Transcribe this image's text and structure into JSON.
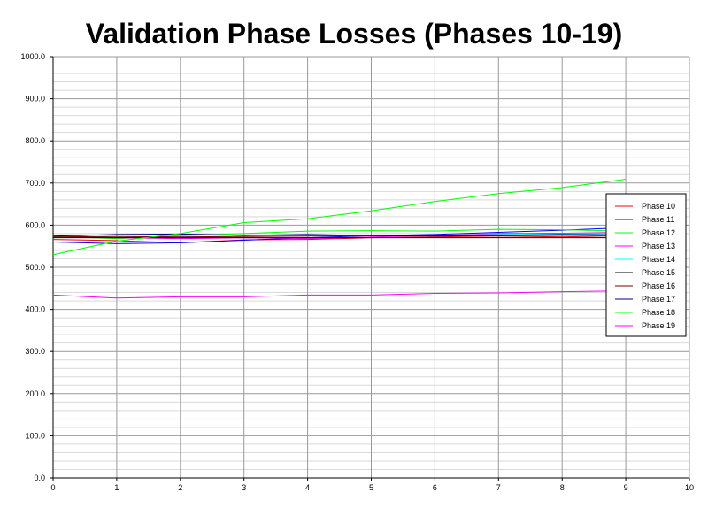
{
  "chart_data": {
    "type": "line",
    "title": "Validation Phase Losses (Phases 10-19)",
    "xlabel": "",
    "ylabel": "",
    "xlim": [
      0,
      10
    ],
    "ylim": [
      0,
      1000
    ],
    "x_ticks": [
      "0",
      "1",
      "2",
      "3",
      "4",
      "5",
      "6",
      "7",
      "8",
      "9",
      "10"
    ],
    "y_ticks": [
      "0.0",
      "100.0",
      "200.0",
      "300.0",
      "400.0",
      "500.0",
      "600.0",
      "700.0",
      "800.0",
      "900.0",
      "1000.0"
    ],
    "grid": true,
    "legend_position": "right",
    "x": [
      0,
      1,
      2,
      3,
      4,
      5,
      6,
      7,
      8,
      9
    ],
    "series": [
      {
        "name": "Phase 10",
        "color": "#ff0000",
        "values": [
          566,
          563,
          558,
          565,
          566,
          570,
          572,
          574,
          572,
          575
        ]
      },
      {
        "name": "Phase 11",
        "color": "#0000ff",
        "values": [
          560,
          556,
          558,
          564,
          570,
          575,
          578,
          583,
          588,
          594
        ]
      },
      {
        "name": "Phase 12",
        "color": "#00ff00",
        "values": [
          573,
          568,
          575,
          580,
          586,
          587,
          586,
          590,
          589,
          586
        ]
      },
      {
        "name": "Phase 13",
        "color": "#ff00ff",
        "values": [
          576,
          570,
          568,
          570,
          568,
          572,
          575,
          580,
          581,
          583
        ]
      },
      {
        "name": "Phase 14",
        "color": "#00ffff",
        "values": [
          575,
          570,
          572,
          574,
          575,
          575,
          576,
          578,
          579,
          580
        ]
      },
      {
        "name": "Phase 15",
        "color": "#000000",
        "values": [
          570,
          570,
          570,
          570,
          570,
          570,
          570,
          570,
          570,
          570
        ]
      },
      {
        "name": "Phase 16",
        "color": "#800000",
        "values": [
          572,
          573,
          572,
          573,
          574,
          575,
          575,
          575,
          576,
          576
        ]
      },
      {
        "name": "Phase 17",
        "color": "#000080",
        "values": [
          574,
          578,
          579,
          576,
          578,
          575,
          574,
          576,
          578,
          577
        ]
      },
      {
        "name": "Phase 18",
        "color": "#00ff00",
        "values": [
          530,
          562,
          580,
          606,
          615,
          634,
          656,
          675,
          689,
          709
        ]
      },
      {
        "name": "Phase 19",
        "color": "#ff00ff",
        "values": [
          434,
          427,
          430,
          430,
          434,
          434,
          438,
          439,
          442,
          444
        ]
      }
    ]
  }
}
